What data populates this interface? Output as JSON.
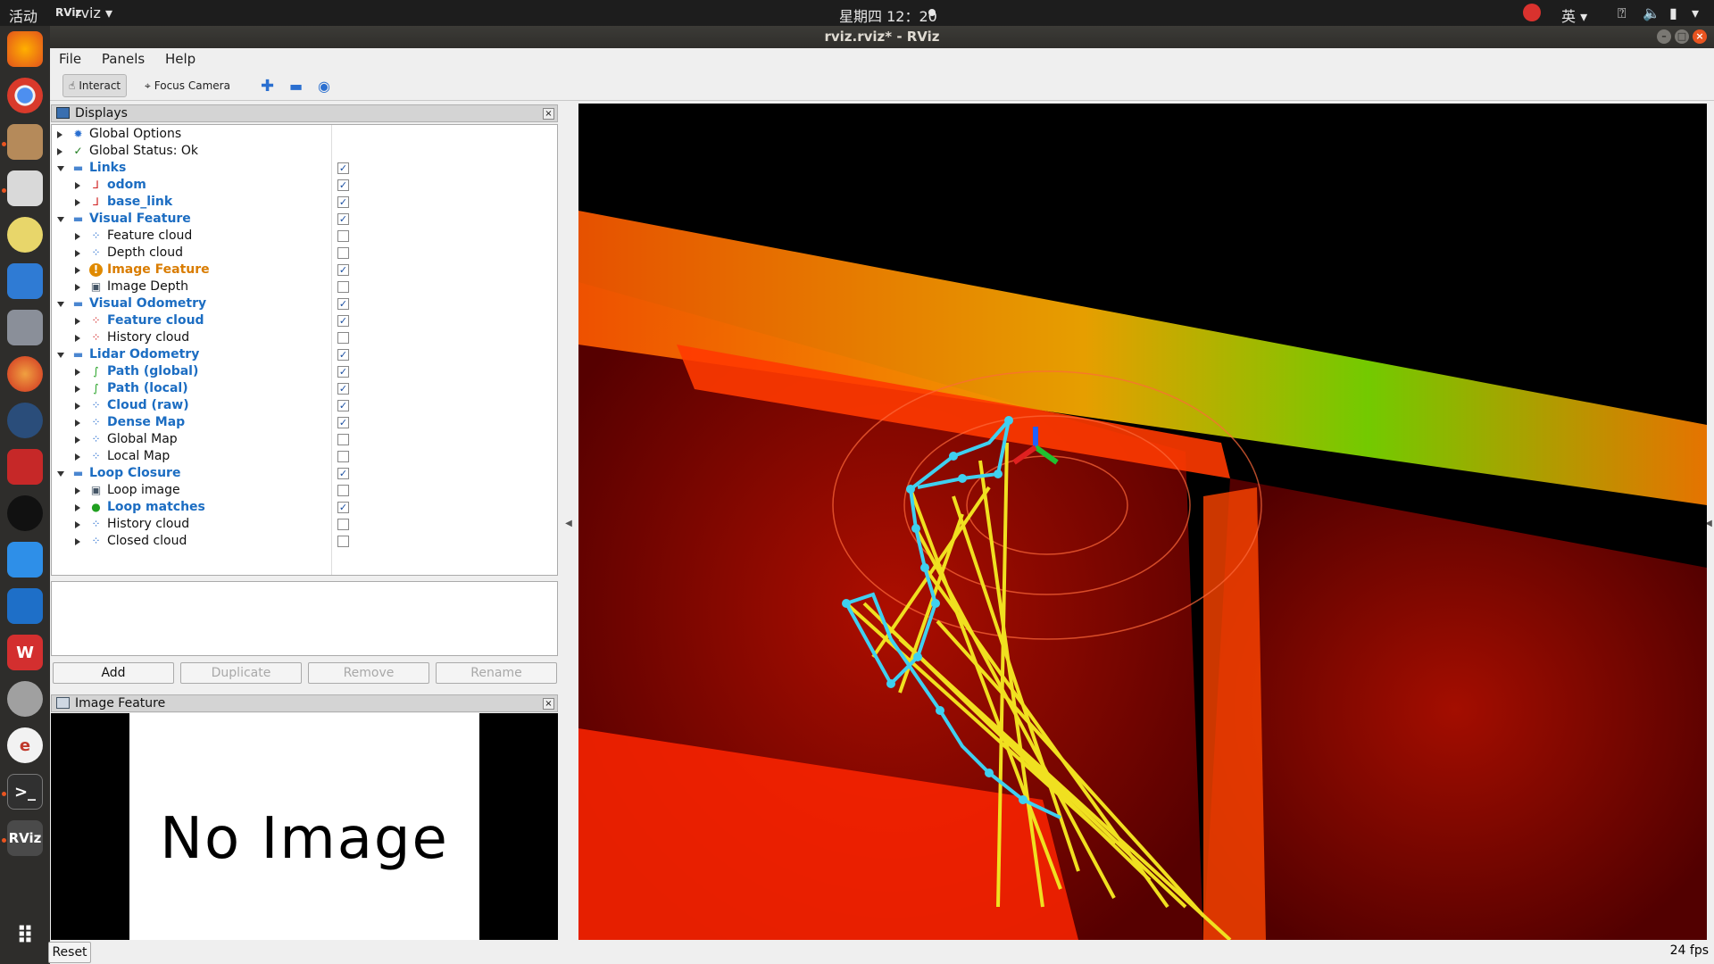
{
  "topbar": {
    "activities": "活动",
    "app_menu": "rviz",
    "clock": "星期四 12：20",
    "input_method": "英"
  },
  "window": {
    "title": "rviz.rviz* - RViz"
  },
  "menubar": {
    "file": "File",
    "panels": "Panels",
    "help": "Help"
  },
  "toolbar": {
    "interact": "Interact",
    "focus_camera": "Focus Camera"
  },
  "displays": {
    "title": "Displays",
    "items": [
      {
        "label": "Global Options",
        "level": 0,
        "expander": "right",
        "icon": "gear-icon",
        "style": "normal",
        "checked": null
      },
      {
        "label": "Global Status: Ok",
        "level": 0,
        "expander": "right",
        "icon": "check-icon",
        "style": "normal",
        "checked": null
      },
      {
        "label": "Links",
        "level": 0,
        "expander": "down",
        "icon": "folder-icon",
        "style": "blue",
        "checked": true
      },
      {
        "label": "odom",
        "level": 1,
        "expander": "right",
        "icon": "axes-icon",
        "style": "blue",
        "checked": true
      },
      {
        "label": "base_link",
        "level": 1,
        "expander": "right",
        "icon": "axes-icon",
        "style": "blue",
        "checked": true
      },
      {
        "label": "Visual Feature",
        "level": 0,
        "expander": "down",
        "icon": "folder-icon",
        "style": "blue",
        "checked": true
      },
      {
        "label": "Feature cloud",
        "level": 1,
        "expander": "right",
        "icon": "pointcloud-icon",
        "style": "normal",
        "checked": false
      },
      {
        "label": "Depth cloud",
        "level": 1,
        "expander": "right",
        "icon": "pointcloud-icon",
        "style": "normal",
        "checked": false
      },
      {
        "label": "Image Feature",
        "level": 1,
        "expander": "right",
        "icon": "warning-icon",
        "style": "orange",
        "checked": true
      },
      {
        "label": "Image Depth",
        "level": 1,
        "expander": "right",
        "icon": "image-icon",
        "style": "normal",
        "checked": false
      },
      {
        "label": "Visual Odometry",
        "level": 0,
        "expander": "down",
        "icon": "folder-icon",
        "style": "blue",
        "checked": true
      },
      {
        "label": "Feature cloud",
        "level": 1,
        "expander": "right",
        "icon": "pointcloud-red-icon",
        "style": "blue",
        "checked": true
      },
      {
        "label": "History cloud",
        "level": 1,
        "expander": "right",
        "icon": "pointcloud-red-icon",
        "style": "normal",
        "checked": false
      },
      {
        "label": "Lidar Odometry",
        "level": 0,
        "expander": "down",
        "icon": "folder-icon",
        "style": "blue",
        "checked": true
      },
      {
        "label": "Path (global)",
        "level": 1,
        "expander": "right",
        "icon": "path-icon",
        "style": "blue",
        "checked": true
      },
      {
        "label": "Path (local)",
        "level": 1,
        "expander": "right",
        "icon": "path-icon",
        "style": "blue",
        "checked": true
      },
      {
        "label": "Cloud (raw)",
        "level": 1,
        "expander": "right",
        "icon": "pointcloud-icon",
        "style": "blue",
        "checked": true
      },
      {
        "label": "Dense Map",
        "level": 1,
        "expander": "right",
        "icon": "pointcloud-icon",
        "style": "blue",
        "checked": true
      },
      {
        "label": "Global Map",
        "level": 1,
        "expander": "right",
        "icon": "pointcloud-icon",
        "style": "normal",
        "checked": false
      },
      {
        "label": "Local Map",
        "level": 1,
        "expander": "right",
        "icon": "pointcloud-icon",
        "style": "normal",
        "checked": false
      },
      {
        "label": "Loop Closure",
        "level": 0,
        "expander": "down",
        "icon": "folder-icon",
        "style": "blue",
        "checked": true
      },
      {
        "label": "Loop image",
        "level": 1,
        "expander": "right",
        "icon": "image-icon",
        "style": "normal",
        "checked": false
      },
      {
        "label": "Loop matches",
        "level": 1,
        "expander": "right",
        "icon": "markers-icon",
        "style": "blue",
        "checked": true
      },
      {
        "label": "History cloud",
        "level": 1,
        "expander": "right",
        "icon": "pointcloud-icon",
        "style": "normal",
        "checked": false
      },
      {
        "label": "Closed cloud",
        "level": 1,
        "expander": "right",
        "icon": "pointcloud-icon",
        "style": "normal",
        "checked": false
      }
    ],
    "buttons": {
      "add": "Add",
      "duplicate": "Duplicate",
      "remove": "Remove",
      "rename": "Rename"
    }
  },
  "image_panel": {
    "title": "Image Feature",
    "placeholder": "No Image"
  },
  "statusbar": {
    "reset": "Reset",
    "fps": "24 fps"
  },
  "colors": {
    "link_blue": "#1c6dc2",
    "warning_orange": "#d97c00",
    "path_cyan": "#3fd0f0",
    "loop_yellow": "#f0e020"
  }
}
